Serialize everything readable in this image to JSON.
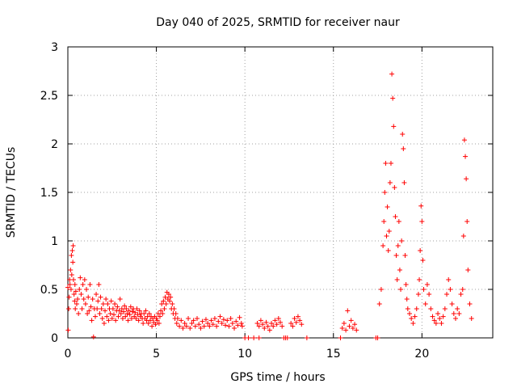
{
  "chart_data": {
    "type": "scatter",
    "title": "Day 040 of 2025, SRMTID for receiver naur",
    "xlabel": "GPS time / hours",
    "ylabel": "SRMTID / TECUs",
    "xlim": [
      0,
      24
    ],
    "ylim": [
      0,
      3
    ],
    "x_ticks": [
      0,
      5,
      10,
      15,
      20
    ],
    "x_tick_labels": [
      "0",
      "5",
      "10",
      "15",
      "20"
    ],
    "y_ticks": [
      0,
      0.5,
      1,
      1.5,
      2,
      2.5,
      3
    ],
    "y_tick_labels": [
      "0",
      "0.5",
      "1",
      "1.5",
      "2",
      "2.5",
      "3"
    ],
    "grid": true,
    "marker": "+",
    "color": "#ff0000",
    "series": [
      {
        "name": "SRMTID",
        "points": [
          [
            0.0,
            0.52
          ],
          [
            0.02,
            0.08
          ],
          [
            0.05,
            0.3
          ],
          [
            0.07,
            0.42
          ],
          [
            0.1,
            0.6
          ],
          [
            0.12,
            0.55
          ],
          [
            0.15,
            0.7
          ],
          [
            0.18,
            0.5
          ],
          [
            0.2,
            0.85
          ],
          [
            0.22,
            0.65
          ],
          [
            0.25,
            0.9
          ],
          [
            0.28,
            0.78
          ],
          [
            0.3,
            0.95
          ],
          [
            0.32,
            0.6
          ],
          [
            0.35,
            0.45
          ],
          [
            0.38,
            0.38
          ],
          [
            0.4,
            0.55
          ],
          [
            0.42,
            0.3
          ],
          [
            0.45,
            0.48
          ],
          [
            0.5,
            0.35
          ],
          [
            0.55,
            0.4
          ],
          [
            0.6,
            0.25
          ],
          [
            0.65,
            0.5
          ],
          [
            0.7,
            0.62
          ],
          [
            0.75,
            0.45
          ],
          [
            0.8,
            0.3
          ],
          [
            0.85,
            0.55
          ],
          [
            0.9,
            0.4
          ],
          [
            0.95,
            0.6
          ],
          [
            1.0,
            0.35
          ],
          [
            1.05,
            0.5
          ],
          [
            1.1,
            0.25
          ],
          [
            1.15,
            0.42
          ],
          [
            1.2,
            0.28
          ],
          [
            1.25,
            0.55
          ],
          [
            1.3,
            0.32
          ],
          [
            1.35,
            0.18
          ],
          [
            1.4,
            0.4
          ],
          [
            1.45,
            0.01
          ],
          [
            1.5,
            0.3
          ],
          [
            1.55,
            0.22
          ],
          [
            1.6,
            0.45
          ],
          [
            1.65,
            0.3
          ],
          [
            1.7,
            0.38
          ],
          [
            1.75,
            0.55
          ],
          [
            1.8,
            0.25
          ],
          [
            1.85,
            0.42
          ],
          [
            1.9,
            0.3
          ],
          [
            1.95,
            0.2
          ],
          [
            2.0,
            0.35
          ],
          [
            2.05,
            0.15
          ],
          [
            2.1,
            0.28
          ],
          [
            2.15,
            0.4
          ],
          [
            2.2,
            0.22
          ],
          [
            2.25,
            0.35
          ],
          [
            2.3,
            0.18
          ],
          [
            2.35,
            0.3
          ],
          [
            2.4,
            0.25
          ],
          [
            2.45,
            0.38
          ],
          [
            2.5,
            0.2
          ],
          [
            2.55,
            0.3
          ],
          [
            2.6,
            0.24
          ],
          [
            2.65,
            0.35
          ],
          [
            2.7,
            0.18
          ],
          [
            2.75,
            0.28
          ],
          [
            2.8,
            0.32
          ],
          [
            2.85,
            0.22
          ],
          [
            2.9,
            0.28
          ],
          [
            2.95,
            0.4
          ],
          [
            3.0,
            0.25
          ],
          [
            3.05,
            0.3
          ],
          [
            3.1,
            0.2
          ],
          [
            3.15,
            0.27
          ],
          [
            3.2,
            0.33
          ],
          [
            3.25,
            0.22
          ],
          [
            3.3,
            0.3
          ],
          [
            3.35,
            0.25
          ],
          [
            3.4,
            0.18
          ],
          [
            3.45,
            0.28
          ],
          [
            3.5,
            0.24
          ],
          [
            3.55,
            0.32
          ],
          [
            3.6,
            0.2
          ],
          [
            3.65,
            0.27
          ],
          [
            3.7,
            0.3
          ],
          [
            3.75,
            0.22
          ],
          [
            3.8,
            0.26
          ],
          [
            3.85,
            0.2
          ],
          [
            3.9,
            0.3
          ],
          [
            3.95,
            0.24
          ],
          [
            4.0,
            0.18
          ],
          [
            4.05,
            0.28
          ],
          [
            4.1,
            0.22
          ],
          [
            4.15,
            0.25
          ],
          [
            4.2,
            0.2
          ],
          [
            4.25,
            0.15
          ],
          [
            4.3,
            0.25
          ],
          [
            4.35,
            0.2
          ],
          [
            4.4,
            0.28
          ],
          [
            4.45,
            0.18
          ],
          [
            4.5,
            0.22
          ],
          [
            4.55,
            0.15
          ],
          [
            4.6,
            0.25
          ],
          [
            4.65,
            0.18
          ],
          [
            4.7,
            0.22
          ],
          [
            4.75,
            0.12
          ],
          [
            4.8,
            0.2
          ],
          [
            4.85,
            0.16
          ],
          [
            4.9,
            0.22
          ],
          [
            4.95,
            0.14
          ],
          [
            5.0,
            0.2
          ],
          [
            5.05,
            0.18
          ],
          [
            5.1,
            0.25
          ],
          [
            5.15,
            0.15
          ],
          [
            5.2,
            0.22
          ],
          [
            5.25,
            0.28
          ],
          [
            5.3,
            0.35
          ],
          [
            5.35,
            0.25
          ],
          [
            5.4,
            0.38
          ],
          [
            5.45,
            0.3
          ],
          [
            5.5,
            0.42
          ],
          [
            5.55,
            0.35
          ],
          [
            5.6,
            0.47
          ],
          [
            5.65,
            0.4
          ],
          [
            5.7,
            0.45
          ],
          [
            5.75,
            0.38
          ],
          [
            5.8,
            0.42
          ],
          [
            5.85,
            0.3
          ],
          [
            5.9,
            0.35
          ],
          [
            5.95,
            0.25
          ],
          [
            6.0,
            0.3
          ],
          [
            6.05,
            0.2
          ],
          [
            6.1,
            0.25
          ],
          [
            6.15,
            0.15
          ],
          [
            6.2,
            0.2
          ],
          [
            6.3,
            0.12
          ],
          [
            6.4,
            0.18
          ],
          [
            6.5,
            0.1
          ],
          [
            6.6,
            0.15
          ],
          [
            6.7,
            0.12
          ],
          [
            6.8,
            0.2
          ],
          [
            6.9,
            0.1
          ],
          [
            7.0,
            0.15
          ],
          [
            7.1,
            0.18
          ],
          [
            7.2,
            0.12
          ],
          [
            7.3,
            0.2
          ],
          [
            7.4,
            0.14
          ],
          [
            7.5,
            0.1
          ],
          [
            7.6,
            0.17
          ],
          [
            7.7,
            0.12
          ],
          [
            7.8,
            0.19
          ],
          [
            7.9,
            0.15
          ],
          [
            8.0,
            0.12
          ],
          [
            8.1,
            0.18
          ],
          [
            8.2,
            0.14
          ],
          [
            8.3,
            0.2
          ],
          [
            8.4,
            0.12
          ],
          [
            8.5,
            0.17
          ],
          [
            8.6,
            0.22
          ],
          [
            8.7,
            0.15
          ],
          [
            8.8,
            0.19
          ],
          [
            8.9,
            0.13
          ],
          [
            9.0,
            0.18
          ],
          [
            9.1,
            0.12
          ],
          [
            9.2,
            0.2
          ],
          [
            9.3,
            0.15
          ],
          [
            9.4,
            0.1
          ],
          [
            9.5,
            0.17
          ],
          [
            9.6,
            0.13
          ],
          [
            9.7,
            0.21
          ],
          [
            9.8,
            0.15
          ],
          [
            9.85,
            0.12
          ],
          [
            10.0,
            0.0
          ],
          [
            10.2,
            0.0
          ],
          [
            10.5,
            0.0
          ],
          [
            10.8,
            0.0
          ],
          [
            10.7,
            0.15
          ],
          [
            10.8,
            0.12
          ],
          [
            10.9,
            0.18
          ],
          [
            11.0,
            0.14
          ],
          [
            11.1,
            0.1
          ],
          [
            11.2,
            0.16
          ],
          [
            11.3,
            0.12
          ],
          [
            11.4,
            0.08
          ],
          [
            11.5,
            0.15
          ],
          [
            11.6,
            0.12
          ],
          [
            11.7,
            0.18
          ],
          [
            11.8,
            0.14
          ],
          [
            11.9,
            0.2
          ],
          [
            12.0,
            0.16
          ],
          [
            12.1,
            0.12
          ],
          [
            12.2,
            0.0
          ],
          [
            12.3,
            0.0
          ],
          [
            12.4,
            0.0
          ],
          [
            12.6,
            0.15
          ],
          [
            12.7,
            0.12
          ],
          [
            12.8,
            0.2
          ],
          [
            12.9,
            0.16
          ],
          [
            13.0,
            0.22
          ],
          [
            13.1,
            0.18
          ],
          [
            13.2,
            0.14
          ],
          [
            13.5,
            0.0
          ],
          [
            15.4,
            0.0
          ],
          [
            15.5,
            0.1
          ],
          [
            15.6,
            0.15
          ],
          [
            15.7,
            0.08
          ],
          [
            15.8,
            0.28
          ],
          [
            15.9,
            0.12
          ],
          [
            16.0,
            0.18
          ],
          [
            16.1,
            0.1
          ],
          [
            16.2,
            0.14
          ],
          [
            16.3,
            0.08
          ],
          [
            17.4,
            0.0
          ],
          [
            17.5,
            0.0
          ],
          [
            17.6,
            0.35
          ],
          [
            17.7,
            0.5
          ],
          [
            17.8,
            0.95
          ],
          [
            17.85,
            1.2
          ],
          [
            17.9,
            1.5
          ],
          [
            17.95,
            1.8
          ],
          [
            18.0,
            1.05
          ],
          [
            18.05,
            1.35
          ],
          [
            18.1,
            0.9
          ],
          [
            18.15,
            1.1
          ],
          [
            18.2,
            1.6
          ],
          [
            18.25,
            1.8
          ],
          [
            18.3,
            2.72
          ],
          [
            18.35,
            2.47
          ],
          [
            18.4,
            2.18
          ],
          [
            18.45,
            1.55
          ],
          [
            18.5,
            1.25
          ],
          [
            18.55,
            0.85
          ],
          [
            18.6,
            0.6
          ],
          [
            18.65,
            0.95
          ],
          [
            18.7,
            1.2
          ],
          [
            18.75,
            0.7
          ],
          [
            18.8,
            0.5
          ],
          [
            18.85,
            1.0
          ],
          [
            18.9,
            2.1
          ],
          [
            18.95,
            1.95
          ],
          [
            19.0,
            1.6
          ],
          [
            19.05,
            0.85
          ],
          [
            19.1,
            0.55
          ],
          [
            19.15,
            0.4
          ],
          [
            19.2,
            0.3
          ],
          [
            19.3,
            0.25
          ],
          [
            19.4,
            0.2
          ],
          [
            19.5,
            0.15
          ],
          [
            19.6,
            0.22
          ],
          [
            19.7,
            0.3
          ],
          [
            19.8,
            0.45
          ],
          [
            19.85,
            0.6
          ],
          [
            19.9,
            0.9
          ],
          [
            19.95,
            1.36
          ],
          [
            20.0,
            1.2
          ],
          [
            20.05,
            0.8
          ],
          [
            20.1,
            0.5
          ],
          [
            20.2,
            0.35
          ],
          [
            20.3,
            0.55
          ],
          [
            20.4,
            0.45
          ],
          [
            20.5,
            0.3
          ],
          [
            20.6,
            0.22
          ],
          [
            20.7,
            0.18
          ],
          [
            20.8,
            0.15
          ],
          [
            20.9,
            0.25
          ],
          [
            21.0,
            0.2
          ],
          [
            21.1,
            0.15
          ],
          [
            21.2,
            0.22
          ],
          [
            21.3,
            0.3
          ],
          [
            21.4,
            0.45
          ],
          [
            21.5,
            0.6
          ],
          [
            21.6,
            0.5
          ],
          [
            21.7,
            0.35
          ],
          [
            21.8,
            0.25
          ],
          [
            21.9,
            0.2
          ],
          [
            22.0,
            0.3
          ],
          [
            22.1,
            0.25
          ],
          [
            22.2,
            0.45
          ],
          [
            22.3,
            0.5
          ],
          [
            22.35,
            1.05
          ],
          [
            22.4,
            2.04
          ],
          [
            22.45,
            1.87
          ],
          [
            22.5,
            1.64
          ],
          [
            22.55,
            1.2
          ],
          [
            22.6,
            0.7
          ],
          [
            22.7,
            0.35
          ],
          [
            22.8,
            0.2
          ]
        ]
      }
    ]
  }
}
